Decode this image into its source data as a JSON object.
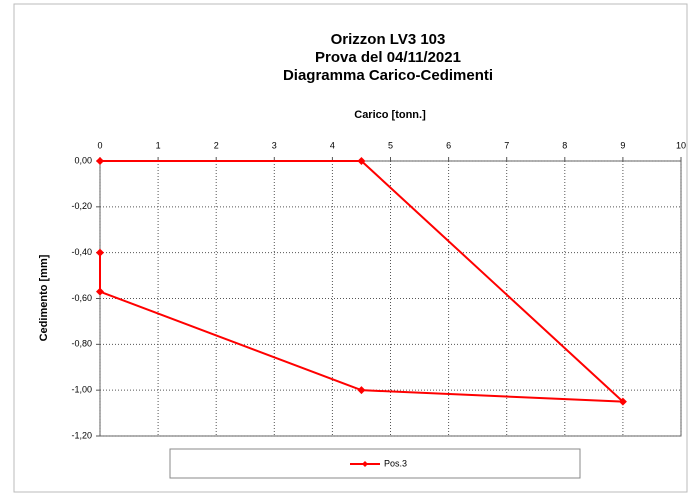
{
  "chart_data": {
    "type": "line",
    "title": [
      "Orizzon LV3 103",
      "Prova del 04/11/2021",
      "Diagramma Carico-Cedimenti"
    ],
    "x_label": "Carico [tonn.]",
    "y_label": "Cedimento [mm]",
    "x": [
      0,
      4.5,
      9,
      4.5,
      0,
      0
    ],
    "series": [
      {
        "name": "Pos.3",
        "color": "#ff0000",
        "values": [
          0,
          0,
          -1.05,
          -1.0,
          -0.57,
          -0.4
        ]
      }
    ],
    "xlim": [
      0,
      10
    ],
    "xticks": [
      0,
      1,
      2,
      3,
      4,
      5,
      6,
      7,
      8,
      9,
      10
    ],
    "ylim": [
      -1.2,
      0
    ],
    "yticks": [
      {
        "value": 0,
        "label": "0,00"
      },
      {
        "value": -0.2,
        "label": "-0,20"
      },
      {
        "value": -0.4,
        "label": "-0,40"
      },
      {
        "value": -0.6,
        "label": "-0,60"
      },
      {
        "value": -0.8,
        "label": "-0,80"
      },
      {
        "value": -1.0,
        "label": "-1,00"
      },
      {
        "value": -1.2,
        "label": "-1,20"
      }
    ],
    "grid": true,
    "legend": "bottom"
  }
}
